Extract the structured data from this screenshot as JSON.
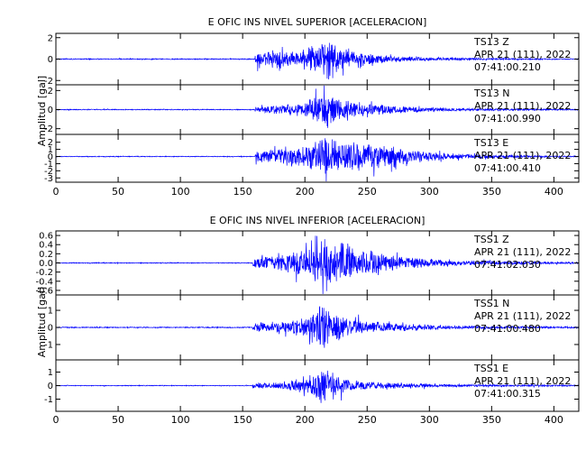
{
  "trace_color": "#0000ff",
  "chart_data": [
    {
      "type": "line",
      "title": "E OFIC INS NIVEL SUPERIOR [ACELERACION]",
      "ylabel": "Amplitud  [gal]",
      "xlim": [
        0,
        420
      ],
      "x_ticks": [
        "0",
        "50",
        "100",
        "150",
        "200",
        "250",
        "300",
        "350",
        "400"
      ],
      "grid": false,
      "traces": [
        {
          "station": "TS13",
          "component": "Z",
          "date": "APR 21 (111), 2022",
          "time": "07:41:00.210",
          "ylim": [
            -2.4,
            2.4
          ],
          "y_ticks": [
            "-2",
            "0",
            "2"
          ],
          "noise": 0.05,
          "onset": 160,
          "envelope": [
            [
              160,
              0.7
            ],
            [
              175,
              0.9
            ],
            [
              195,
              0.8
            ],
            [
              210,
              1.4
            ],
            [
              217,
              2.2
            ],
            [
              222,
              1.6
            ],
            [
              230,
              1.0
            ],
            [
              245,
              0.7
            ],
            [
              260,
              0.45
            ],
            [
              280,
              0.25
            ],
            [
              310,
              0.15
            ],
            [
              360,
              0.08
            ],
            [
              420,
              0.05
            ]
          ]
        },
        {
          "station": "TS13",
          "component": "N",
          "date": "APR 21 (111), 2022",
          "time": "07:41:00.990",
          "ylim": [
            -2.6,
            2.6
          ],
          "y_ticks": [
            "-2",
            "0",
            "2"
          ],
          "noise": 0.05,
          "onset": 160,
          "envelope": [
            [
              160,
              0.4
            ],
            [
              180,
              0.5
            ],
            [
              200,
              0.8
            ],
            [
              212,
              1.6
            ],
            [
              217,
              2.4
            ],
            [
              223,
              1.5
            ],
            [
              235,
              1.0
            ],
            [
              250,
              0.7
            ],
            [
              270,
              0.45
            ],
            [
              300,
              0.25
            ],
            [
              340,
              0.12
            ],
            [
              420,
              0.06
            ]
          ]
        },
        {
          "station": "TS13",
          "component": "E",
          "date": "APR 21 (111), 2022",
          "time": "07:41:00.410",
          "ylim": [
            -3.6,
            3.1
          ],
          "y_ticks": [
            "-3",
            "-2",
            "-1",
            "0",
            "1",
            "2"
          ],
          "noise": 0.06,
          "onset": 160,
          "envelope": [
            [
              160,
              0.9
            ],
            [
              180,
              1.2
            ],
            [
              200,
              1.6
            ],
            [
              210,
              2.5
            ],
            [
              215,
              3.1
            ],
            [
              225,
              2.5
            ],
            [
              245,
              2.0
            ],
            [
              265,
              1.8
            ],
            [
              285,
              1.0
            ],
            [
              310,
              0.55
            ],
            [
              340,
              0.3
            ],
            [
              380,
              0.15
            ],
            [
              420,
              0.08
            ]
          ]
        }
      ]
    },
    {
      "type": "line",
      "title": "E OFIC INS NIVEL INFERIOR [ACELERACION]",
      "ylabel": "Amplitud  [gal]",
      "xlim": [
        0,
        420
      ],
      "x_ticks": [
        "0",
        "50",
        "100",
        "150",
        "200",
        "250",
        "300",
        "350",
        "400"
      ],
      "grid": false,
      "traces": [
        {
          "station": "TSS1",
          "component": "Z",
          "date": "APR 21 (111), 2022",
          "time": "07:41:02.030",
          "ylim": [
            -0.7,
            0.7
          ],
          "y_ticks": [
            "-0.6",
            "-0.4",
            "-0.2",
            "0.0",
            "0.2",
            "0.4",
            "0.6"
          ],
          "noise": 0.01,
          "onset": 158,
          "envelope": [
            [
              158,
              0.12
            ],
            [
              170,
              0.18
            ],
            [
              190,
              0.24
            ],
            [
              205,
              0.4
            ],
            [
              215,
              0.62
            ],
            [
              225,
              0.5
            ],
            [
              240,
              0.34
            ],
            [
              260,
              0.24
            ],
            [
              280,
              0.15
            ],
            [
              300,
              0.1
            ],
            [
              340,
              0.05
            ],
            [
              420,
              0.02
            ]
          ]
        },
        {
          "station": "TSS1",
          "component": "N",
          "date": "APR 21 (111), 2022",
          "time": "07:41:00.480",
          "ylim": [
            -1.9,
            1.9
          ],
          "y_ticks": [
            "-1",
            "0",
            "1"
          ],
          "noise": 0.03,
          "onset": 158,
          "envelope": [
            [
              158,
              0.25
            ],
            [
              180,
              0.35
            ],
            [
              200,
              0.55
            ],
            [
              210,
              1.2
            ],
            [
              214,
              1.8
            ],
            [
              220,
              1.0
            ],
            [
              235,
              0.55
            ],
            [
              255,
              0.35
            ],
            [
              280,
              0.22
            ],
            [
              320,
              0.12
            ],
            [
              420,
              0.05
            ]
          ]
        },
        {
          "station": "TSS1",
          "component": "E",
          "date": "APR 21 (111), 2022",
          "time": "07:41:00.315",
          "ylim": [
            -1.9,
            1.9
          ],
          "y_ticks": [
            "-1",
            "0",
            "1"
          ],
          "noise": 0.03,
          "onset": 158,
          "envelope": [
            [
              158,
              0.2
            ],
            [
              180,
              0.3
            ],
            [
              200,
              0.6
            ],
            [
              210,
              1.3
            ],
            [
              214,
              1.7
            ],
            [
              222,
              0.95
            ],
            [
              235,
              0.5
            ],
            [
              255,
              0.3
            ],
            [
              280,
              0.2
            ],
            [
              320,
              0.1
            ],
            [
              420,
              0.05
            ]
          ]
        }
      ]
    }
  ]
}
